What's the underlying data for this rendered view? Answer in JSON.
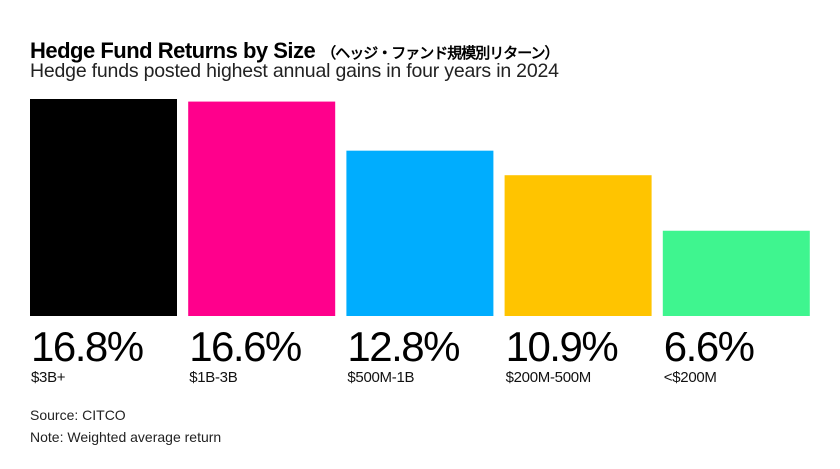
{
  "chart_data": {
    "type": "bar",
    "title": "Hedge Fund Returns by Size",
    "title_japanese": "（ヘッジ・ファンド規模別リターン）",
    "subtitle": "Hedge funds posted highest annual gains in four years in 2024",
    "categories": [
      "$3B+",
      "$1B-3B",
      "$500M-1B",
      "$200M-500M",
      "<$200M"
    ],
    "values": [
      16.8,
      16.6,
      12.8,
      10.9,
      6.6
    ],
    "value_labels": [
      "16.8%",
      "16.6%",
      "12.8%",
      "10.9%",
      "6.6%"
    ],
    "colors": [
      "#000000",
      "#ff008c",
      "#00adfe",
      "#ffc400",
      "#3ff58f"
    ],
    "unit": "%",
    "ylim": [
      0,
      16.8
    ],
    "grid": false,
    "legend": "none"
  },
  "footer": {
    "source": "Source: CITCO",
    "note": "Note: Weighted average return"
  }
}
